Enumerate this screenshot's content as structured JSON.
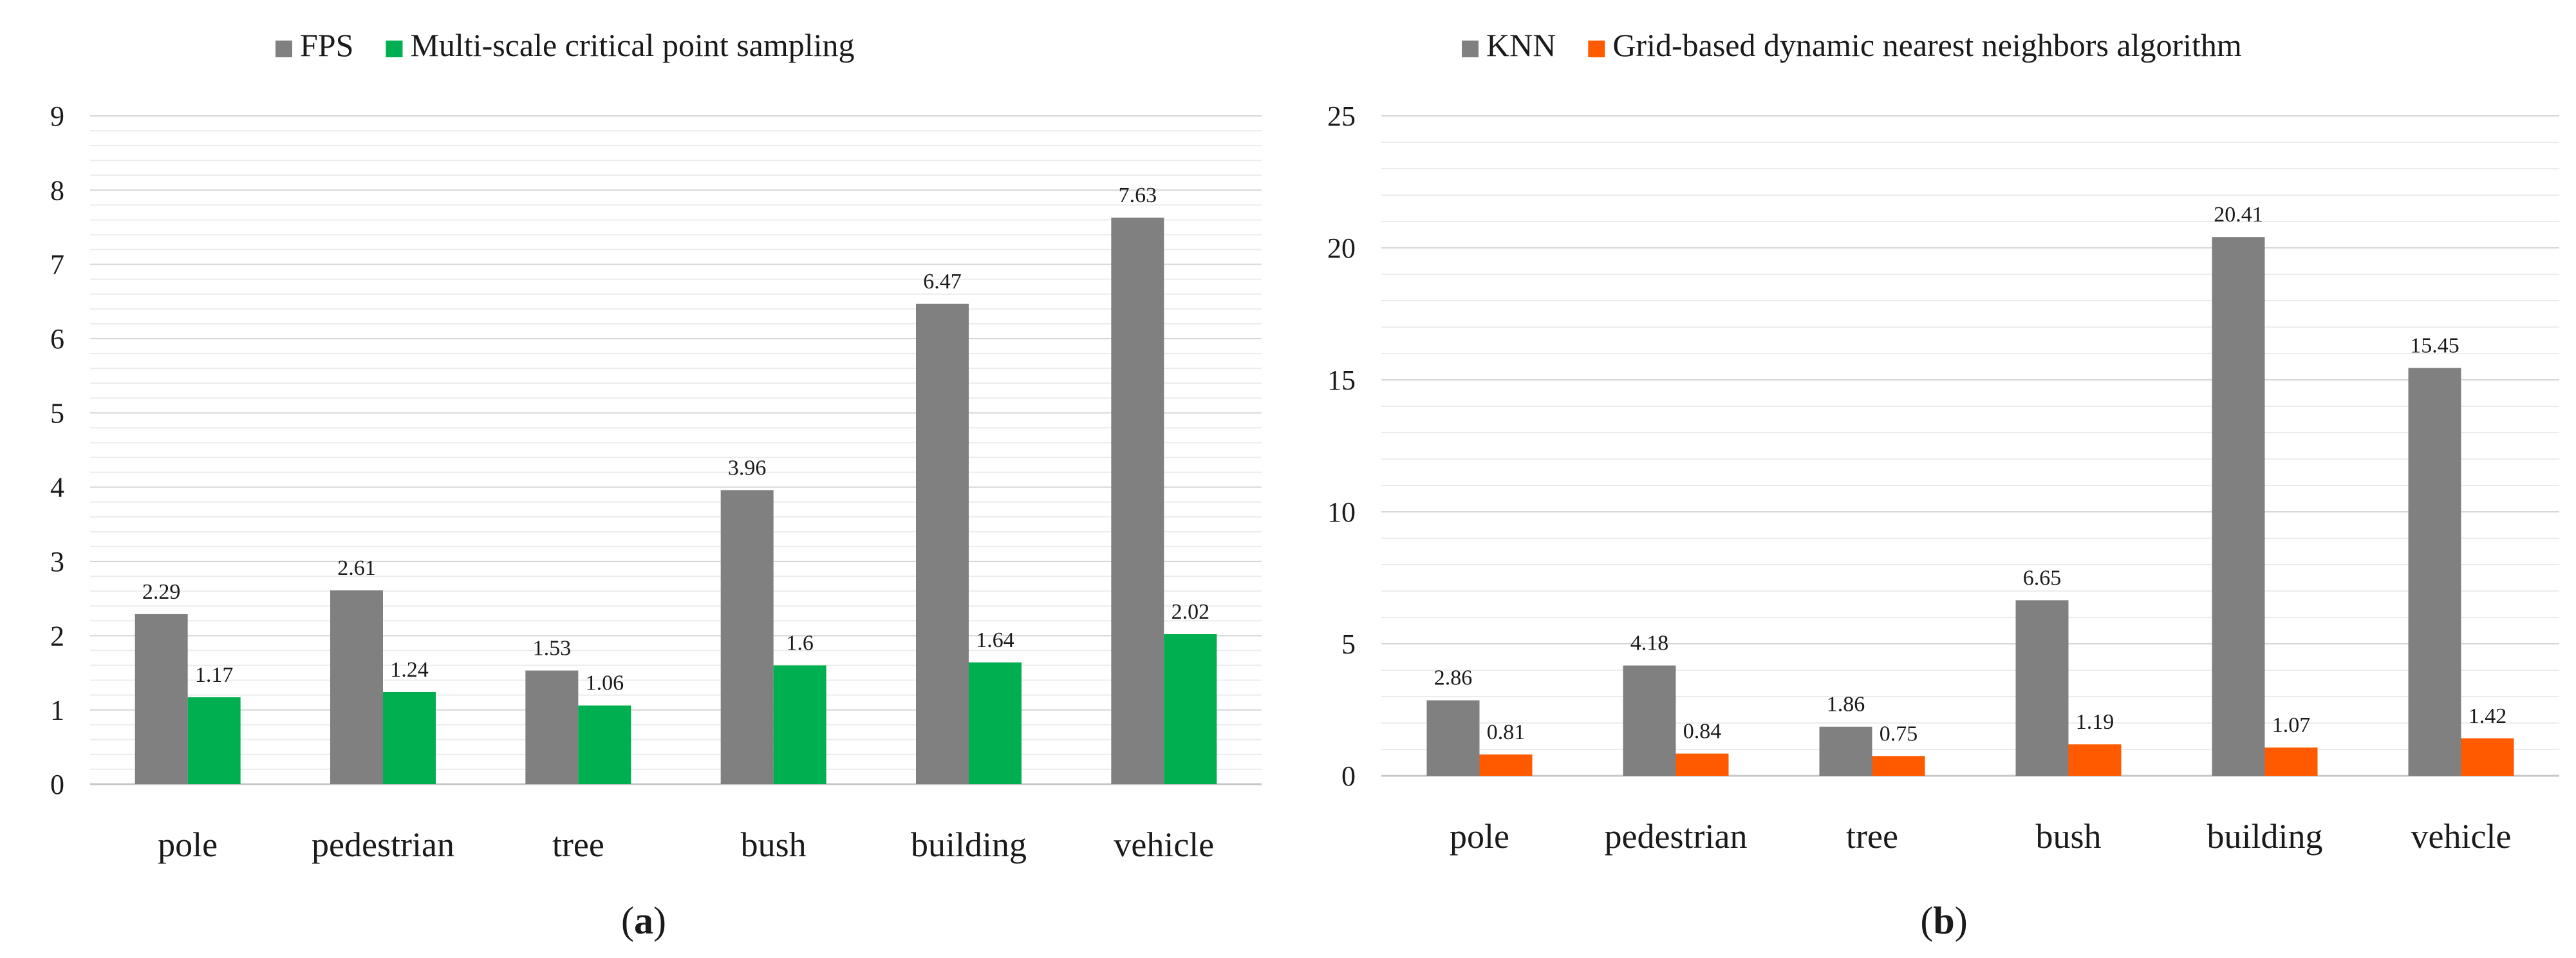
{
  "figures": [
    {
      "id": "a",
      "caption": "a",
      "legend": [
        {
          "label": "FPS",
          "color": "#808080"
        },
        {
          "label": "Multi-scale critical point sampling",
          "color": "#00b050"
        }
      ]
    },
    {
      "id": "b",
      "caption": "b",
      "legend": [
        {
          "label": "KNN",
          "color": "#808080"
        },
        {
          "label": "Grid-based dynamic nearest neighbors algorithm",
          "color": "#ff5a00"
        }
      ]
    }
  ],
  "chart_data": [
    {
      "type": "bar",
      "categories": [
        "pole",
        "pedestrian",
        "tree",
        "bush",
        "building",
        "vehicle"
      ],
      "series": [
        {
          "name": "FPS",
          "color": "#808080",
          "values": [
            2.29,
            2.61,
            1.53,
            3.96,
            6.47,
            7.63
          ],
          "labels": [
            "2.29",
            "2.61",
            "1.53",
            "3.96",
            "6.47",
            "7.63"
          ]
        },
        {
          "name": "Multi-scale critical point sampling",
          "color": "#00b050",
          "values": [
            1.17,
            1.24,
            1.06,
            1.6,
            1.64,
            2.02
          ],
          "labels": [
            "1.17",
            "1.24",
            "1.06",
            "1.6",
            "1.64",
            "2.02"
          ]
        }
      ],
      "ylim": [
        0,
        9
      ],
      "major_ticks": [
        0,
        1,
        2,
        3,
        4,
        5,
        6,
        7,
        8,
        9
      ],
      "tick_labels": [
        "0",
        "1",
        "2",
        "3",
        "4",
        "5",
        "6",
        "7",
        "8",
        "9"
      ],
      "minor_grid_step": 0.2,
      "grid": true,
      "legend_position": "top-center",
      "title": "",
      "xlabel": "",
      "ylabel": ""
    },
    {
      "type": "bar",
      "categories": [
        "pole",
        "pedestrian",
        "tree",
        "bush",
        "building",
        "vehicle"
      ],
      "series": [
        {
          "name": "KNN",
          "color": "#808080",
          "values": [
            2.86,
            4.18,
            1.86,
            6.65,
            20.41,
            15.45
          ],
          "labels": [
            "2.86",
            "4.18",
            "1.86",
            "6.65",
            "20.41",
            "15.45"
          ]
        },
        {
          "name": "Grid-based dynamic nearest neighbors algorithm",
          "color": "#ff5a00",
          "values": [
            0.81,
            0.84,
            0.75,
            1.19,
            1.07,
            1.42
          ],
          "labels": [
            "0.81",
            "0.84",
            "0.75",
            "1.19",
            "1.07",
            "1.42"
          ]
        }
      ],
      "ylim": [
        0,
        25
      ],
      "major_ticks": [
        0,
        5,
        10,
        15,
        20,
        25
      ],
      "tick_labels": [
        "0",
        "5",
        "10",
        "15",
        "20",
        "25"
      ],
      "minor_grid_step": 1,
      "grid": true,
      "legend_position": "top-center",
      "title": "",
      "xlabel": "",
      "ylabel": ""
    }
  ]
}
